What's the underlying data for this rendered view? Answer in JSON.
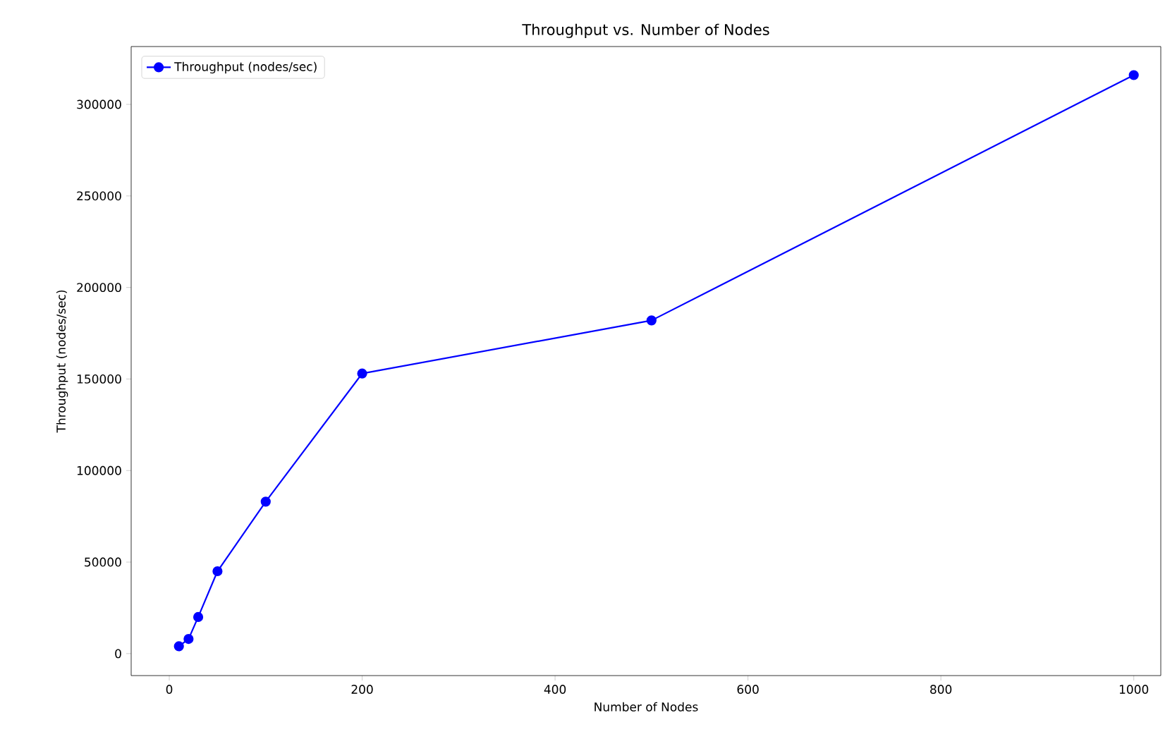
{
  "chart_data": {
    "type": "line",
    "title": "Throughput vs. Number of Nodes",
    "xlabel": "Number of Nodes",
    "ylabel": "Throughput (nodes/sec)",
    "x": [
      10,
      20,
      30,
      50,
      100,
      200,
      500,
      1000
    ],
    "series": [
      {
        "name": "Throughput (nodes/sec)",
        "color": "#0000ff",
        "values": [
          4000,
          8000,
          20000,
          45000,
          83000,
          153000,
          182000,
          316000
        ]
      }
    ],
    "xlim": [
      -39.5,
      1028
    ],
    "ylim": [
      -12000,
      331600
    ],
    "xticks": [
      0,
      200,
      400,
      600,
      800,
      1000
    ],
    "yticks": [
      0,
      50000,
      100000,
      150000,
      200000,
      250000,
      300000
    ],
    "marker": "circle",
    "line_style": "solid",
    "legend": "top left",
    "grid": false
  }
}
